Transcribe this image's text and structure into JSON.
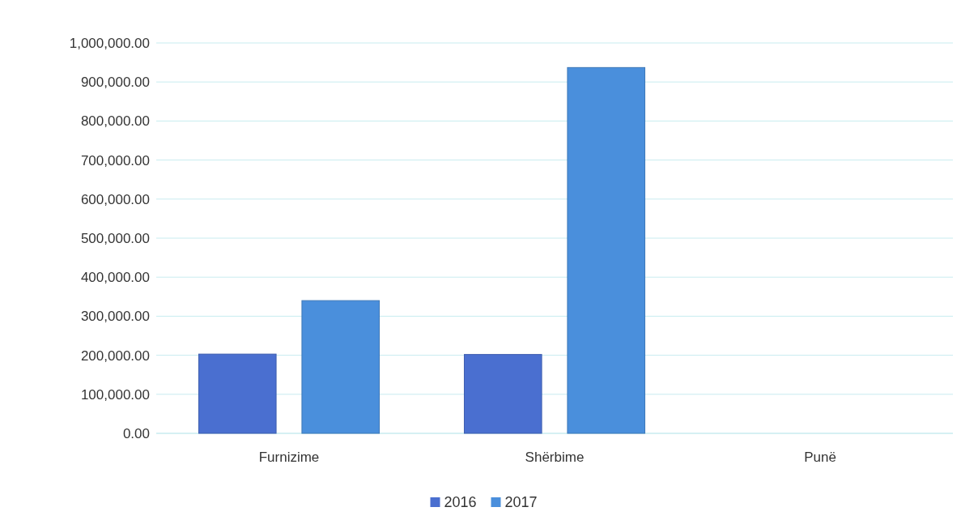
{
  "chart_data": {
    "type": "bar",
    "categories": [
      "Furnizime",
      "Shërbime",
      "Punë"
    ],
    "series": [
      {
        "name": "2016",
        "color": "#4a6fd0",
        "values": [
          203000,
          202000,
          0
        ]
      },
      {
        "name": "2017",
        "color": "#4a8fdc",
        "values": [
          340000,
          937000,
          0
        ]
      }
    ],
    "ylim": [
      0,
      1000000
    ],
    "yticks": [
      {
        "value": 0,
        "label": "0.00"
      },
      {
        "value": 100000,
        "label": "100,000.00"
      },
      {
        "value": 200000,
        "label": "200,000.00"
      },
      {
        "value": 300000,
        "label": "300,000.00"
      },
      {
        "value": 400000,
        "label": "400,000.00"
      },
      {
        "value": 500000,
        "label": "500,000.00"
      },
      {
        "value": 600000,
        "label": "600,000.00"
      },
      {
        "value": 700000,
        "label": "700,000.00"
      },
      {
        "value": 800000,
        "label": "800,000.00"
      },
      {
        "value": 900000,
        "label": "900,000.00"
      },
      {
        "value": 1000000,
        "label": "1,000,000.00"
      }
    ],
    "grid": "y",
    "legend": "bottom"
  }
}
